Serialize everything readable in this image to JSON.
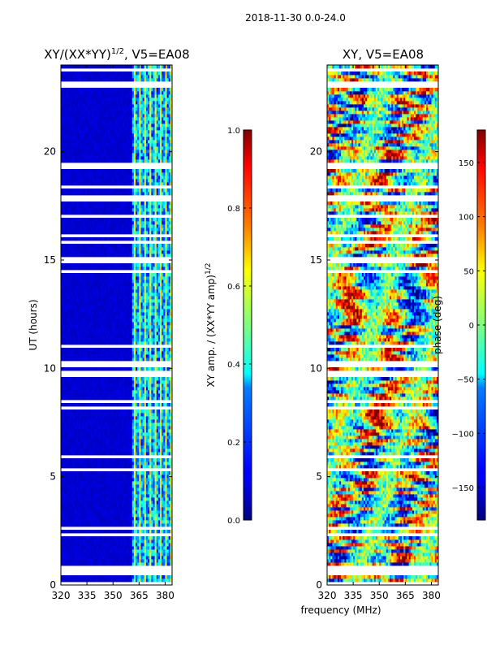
{
  "figure": {
    "suptitle": "2018-11-30 0.0-24.0",
    "xlabel": "frequency (MHz)"
  },
  "chart_data": [
    {
      "type": "heatmap",
      "title": "XY/(XX*YY)^{1/2}, V5=EA08",
      "title_base": "XY/(XX*YY)",
      "title_sup": "1/2",
      "title_rest": ", V5=EA08",
      "xlabel": "frequency (MHz)",
      "ylabel": "UT (hours)",
      "xlim": [
        320,
        384
      ],
      "ylim": [
        0,
        24
      ],
      "xticks": [
        320,
        335,
        350,
        365,
        380
      ],
      "yticks": [
        0,
        5,
        10,
        15,
        20
      ],
      "colormap": "jet",
      "colorbar": {
        "label": "XY amp. / (XX*YY amp)^{1/2}",
        "label_base": "XY amp. / (XX*YY amp)",
        "label_sup": "1/2",
        "range": [
          0.0,
          1.0
        ],
        "ticks": [
          "0.0",
          "0.2",
          "0.4",
          "0.6",
          "0.8",
          "1.0"
        ]
      },
      "description_of_values": "mostly ~0.05 below 361 MHz, 0.2-0.6 striped between 361 and 382 MHz"
    },
    {
      "type": "heatmap",
      "title": "XY, V5=EA08",
      "xlabel": "frequency (MHz)",
      "ylabel": "",
      "xlim": [
        320,
        384
      ],
      "ylim": [
        0,
        24
      ],
      "xticks": [
        320,
        335,
        350,
        365,
        380
      ],
      "yticks": [
        0,
        5,
        10,
        15,
        20
      ],
      "colormap": "jet",
      "colorbar": {
        "label": "phase (deg)",
        "range": [
          -180,
          180
        ],
        "ticks": [
          "150",
          "100",
          "50",
          "0",
          "−50",
          "−100",
          "−150"
        ]
      }
    }
  ],
  "colors": {
    "background": "#ffffff",
    "axis": "#000000"
  }
}
